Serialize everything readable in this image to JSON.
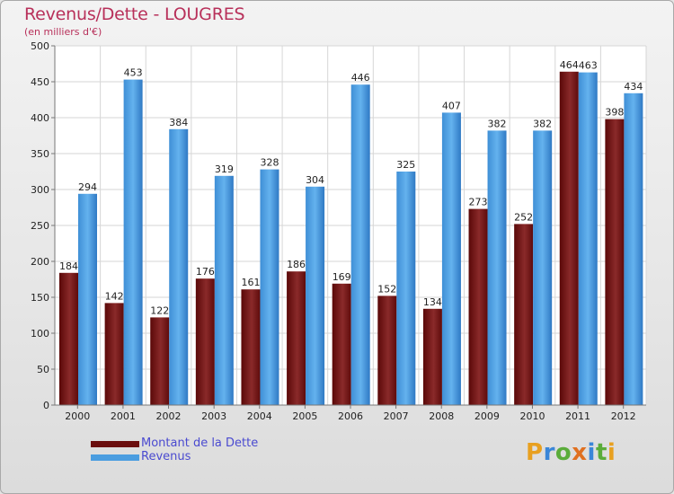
{
  "chart_data": {
    "type": "bar",
    "title": "Revenus/Dette - LOUGRES",
    "subtitle": "(en milliers d'€)",
    "categories": [
      "2000",
      "2001",
      "2002",
      "2003",
      "2004",
      "2005",
      "2006",
      "2007",
      "2008",
      "2009",
      "2010",
      "2011",
      "2012"
    ],
    "series": [
      {
        "name": "Montant de la Dette",
        "color": "#6b0d0d",
        "values": [
          184,
          142,
          122,
          176,
          161,
          186,
          169,
          152,
          134,
          273,
          252,
          464,
          398
        ]
      },
      {
        "name": "Revenus",
        "color": "#4a9de0",
        "values": [
          294,
          453,
          384,
          319,
          328,
          304,
          446,
          325,
          407,
          382,
          382,
          463,
          434
        ]
      }
    ],
    "ylim": [
      0,
      500
    ],
    "yticks": [
      0,
      50,
      100,
      150,
      200,
      250,
      300,
      350,
      400,
      450,
      500
    ],
    "grid": true,
    "legend_position": "bottom-left"
  },
  "brand": {
    "text": "Proxiti",
    "letters": [
      {
        "ch": "P",
        "color": "#e8a020"
      },
      {
        "ch": "r",
        "color": "#3a86d8"
      },
      {
        "ch": "o",
        "color": "#5aac3a"
      },
      {
        "ch": "x",
        "color": "#e07020"
      },
      {
        "ch": "i",
        "color": "#3a86d8"
      },
      {
        "ch": "t",
        "color": "#5aac3a"
      },
      {
        "ch": "i",
        "color": "#e8a020"
      }
    ]
  }
}
